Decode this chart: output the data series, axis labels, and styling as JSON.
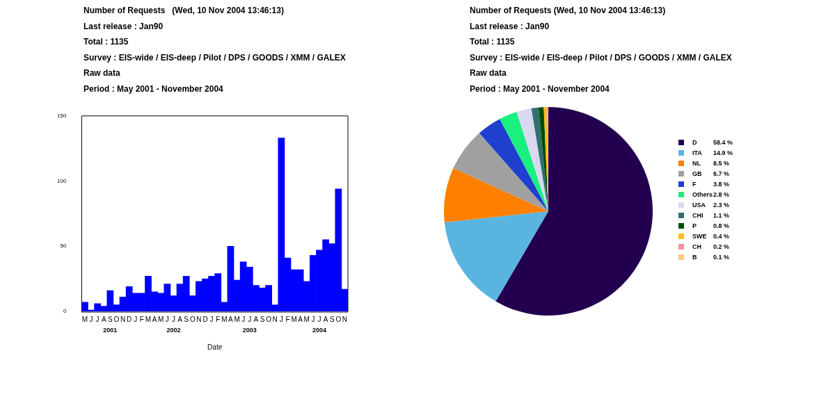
{
  "chart_data": [
    {
      "type": "bar",
      "title": "Number of Requests   (Wed, 10 Nov 2004 13:46:13)",
      "subtitle": "Last release : Jan90\nTotal : 1135\nSurvey : EIS-wide / EIS-deep / Pilot / DPS / GOODS / XMM / GALEX\nRaw data\nPeriod : May 2001 - November 2004",
      "xlabel": "Date",
      "categories": [
        "M",
        "J",
        "J",
        "A",
        "S",
        "O",
        "N",
        "D",
        "J",
        "F",
        "M",
        "A",
        "M",
        "J",
        "J",
        "A",
        "S",
        "O",
        "N",
        "D",
        "J",
        "F",
        "M",
        "A",
        "M",
        "J",
        "J",
        "A",
        "S",
        "O",
        "N",
        "J",
        "F",
        "M",
        "A",
        "M",
        "J",
        "J",
        "A",
        "S",
        "O",
        "N"
      ],
      "values": [
        7,
        1,
        6,
        4,
        16,
        5,
        11,
        19,
        14,
        14,
        27,
        15,
        14,
        21,
        12,
        21,
        27,
        12,
        23,
        25,
        27,
        29,
        7,
        50,
        24,
        38,
        34,
        20,
        18,
        20,
        5,
        133,
        41,
        32,
        32,
        23,
        43,
        47,
        55,
        52,
        94,
        17
      ],
      "color": "#0000ff",
      "ylim": [
        0,
        150
      ],
      "yticks": [
        0,
        50,
        100,
        150
      ],
      "grid": false,
      "legend": false,
      "annotations": [
        "2001",
        "2002",
        "2003",
        "2004"
      ]
    },
    {
      "type": "pie",
      "title": "Number of Requests (Wed, 10 Nov 2004 13:46:13)",
      "subtitle": "Last release : Jan90\nTotal : 1135\nSurvey : EIS-wide / EIS-deep / Pilot / DPS / GOODS / XMM / GALEX\nRaw data\nPeriod : May 2001 - November 2004",
      "categories": [
        "D",
        "ITA",
        "NL",
        "GB",
        "F",
        "Others",
        "USA",
        "CHI",
        "P",
        "SWE",
        "CH",
        "B"
      ],
      "values": [
        58.4,
        14.9,
        8.5,
        6.7,
        3.8,
        2.8,
        2.3,
        1.1,
        0.8,
        0.4,
        0.2,
        0.1
      ],
      "value_labels": [
        "58.4 %",
        "14.9 %",
        "8.5 %",
        "6.7 %",
        "3.8 %",
        "2.8 %",
        "2.3 %",
        "1.1 %",
        "0.8 %",
        "0.4 %",
        "0.2 %",
        "0.1 %"
      ],
      "colors": [
        "#22004f",
        "#5ab4e0",
        "#ff8000",
        "#a0a0a0",
        "#1f3fcf",
        "#19f080",
        "#d8d8f0",
        "#307070",
        "#004f00",
        "#ffc000",
        "#ff90a0",
        "#ffc880"
      ],
      "legend": "right"
    }
  ]
}
